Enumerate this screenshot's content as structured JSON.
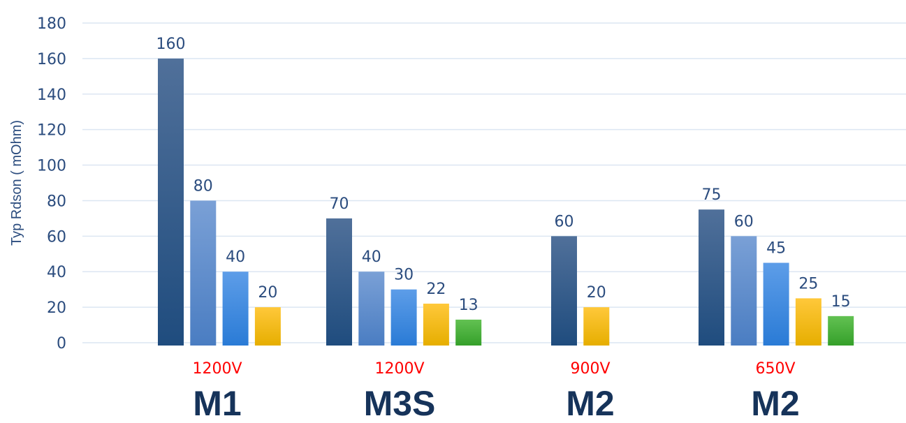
{
  "chart_data": {
    "type": "bar",
    "title": "",
    "xlabel": "",
    "ylabel": "Typ Rdson ( mOhm)",
    "ylim": [
      0,
      180
    ],
    "yticks": [
      0,
      20,
      40,
      60,
      80,
      100,
      120,
      140,
      160,
      180
    ],
    "grid": true,
    "legend": "none",
    "series_colors": [
      [
        "#50709a",
        "#1f4c7e"
      ],
      [
        "#7aa0d6",
        "#4a7dc2"
      ],
      [
        "#5d9de8",
        "#2a7bd6"
      ],
      [
        "#ffc83a",
        "#e6ae00"
      ],
      [
        "#62c152",
        "#35a02a"
      ]
    ],
    "groups": [
      {
        "name": "M1",
        "voltage": "1200V",
        "bars": [
          {
            "series": 0,
            "value": 160
          },
          {
            "series": 1,
            "value": 80
          },
          {
            "series": 2,
            "value": 40
          },
          {
            "series": 3,
            "value": 20
          }
        ]
      },
      {
        "name": "M3S",
        "voltage": "1200V",
        "bars": [
          {
            "series": 0,
            "value": 70
          },
          {
            "series": 1,
            "value": 40
          },
          {
            "series": 2,
            "value": 30
          },
          {
            "series": 3,
            "value": 22
          },
          {
            "series": 4,
            "value": 13
          }
        ]
      },
      {
        "name": "M2",
        "voltage": "900V",
        "bars": [
          {
            "series": 0,
            "value": 60
          },
          {
            "series": 3,
            "value": 20
          }
        ]
      },
      {
        "name": "M2",
        "voltage": "650V",
        "bars": [
          {
            "series": 0,
            "value": 75
          },
          {
            "series": 1,
            "value": 60
          },
          {
            "series": 2,
            "value": 45
          },
          {
            "series": 3,
            "value": 25
          },
          {
            "series": 4,
            "value": 15
          }
        ]
      }
    ]
  }
}
